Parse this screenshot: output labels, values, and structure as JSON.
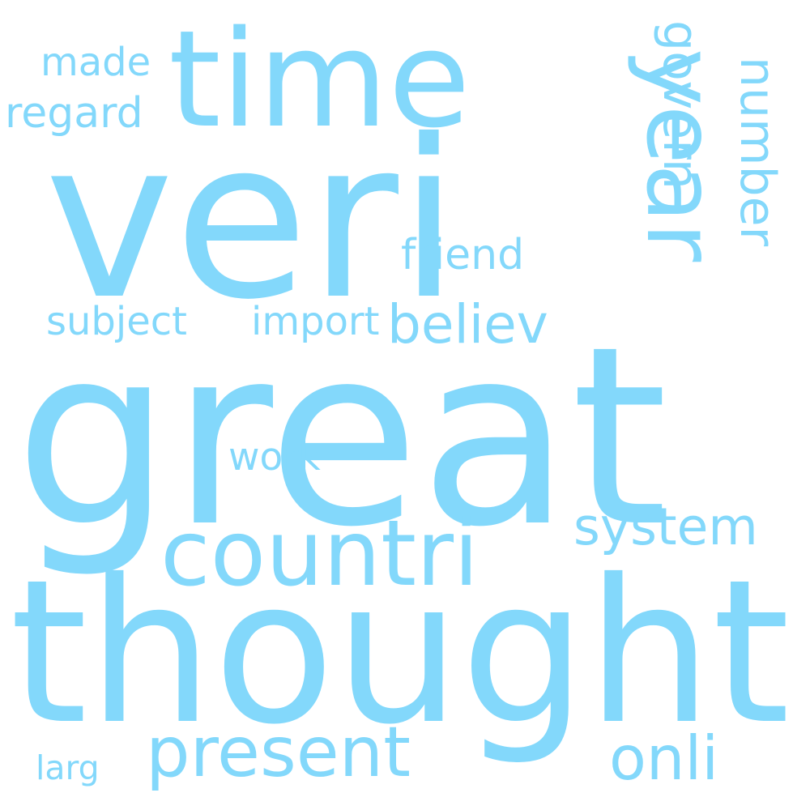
{
  "word_color": "#83d8fb",
  "background_color": "#ffffff",
  "words": {
    "veri": "veri",
    "great": "great",
    "thought": "thought",
    "time": "time",
    "year": "year",
    "countri": "countri",
    "present": "present",
    "govern": "govern",
    "number": "number",
    "system": "system",
    "onli": "onli",
    "believ": "believ",
    "friend": "friend",
    "import": "import",
    "subject": "subject",
    "regard": "regard",
    "made": "made",
    "work": "work",
    "larg": "larg"
  }
}
